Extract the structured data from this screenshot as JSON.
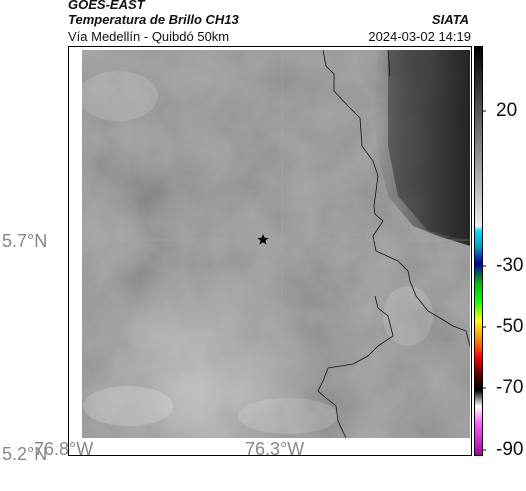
{
  "header": {
    "satellite": "GOES-EAST",
    "product": "Temperatura de Brillo CH13",
    "region": "Vía Medellín - Quibdó 50km",
    "agency": "SIATA",
    "timestamp": "2024-03-02 14:19"
  },
  "axes": {
    "lat_ticks": [
      {
        "label": "5.7°N",
        "value": 5.7
      },
      {
        "label": "5.2°N",
        "value": 5.2
      }
    ],
    "lon_ticks": [
      {
        "label": "76.8°W",
        "value": -76.8
      },
      {
        "label": "76.3°W",
        "value": -76.3
      }
    ]
  },
  "map": {
    "marker": "star-marker",
    "gridlines": true
  },
  "colorbar": {
    "ticks": [
      {
        "label": "20",
        "value": 20
      },
      {
        "label": "-30",
        "value": -30
      },
      {
        "label": "-50",
        "value": -50
      },
      {
        "label": "-70",
        "value": -70
      },
      {
        "label": "-90",
        "value": -90
      }
    ],
    "colors": [
      "#000000",
      "#ffffff",
      "#00e0ff",
      "#0000a0",
      "#00ff00",
      "#ffff00",
      "#ff0000",
      "#000000",
      "#ffffff",
      "#ff00ff"
    ]
  }
}
